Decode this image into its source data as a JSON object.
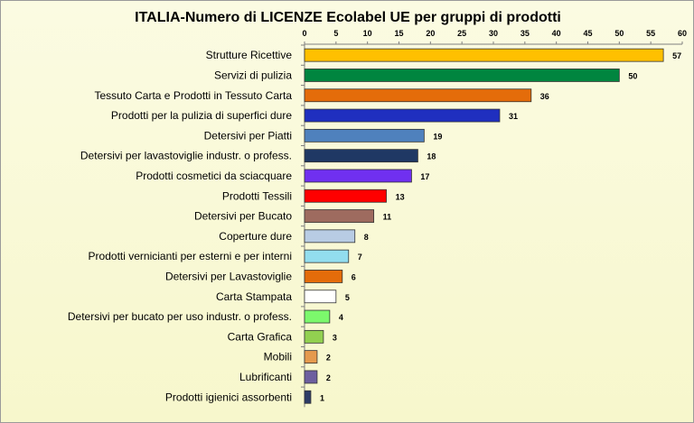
{
  "chart_data": {
    "type": "bar",
    "orientation": "horizontal",
    "title": "ITALIA-Numero di LICENZE  Ecolabel UE per gruppi di prodotti",
    "xlim": [
      0,
      60
    ],
    "xticks": [
      0,
      5,
      10,
      15,
      20,
      25,
      30,
      35,
      40,
      45,
      50,
      55,
      60
    ],
    "x_axis_position": "top",
    "grid": false,
    "categories": [
      "Strutture Ricettive",
      "Servizi di pulizia",
      "Tessuto Carta e Prodotti in Tessuto Carta",
      "Prodotti per la pulizia di superfici dure",
      "Detersivi per Piatti",
      "Detersivi per lavastoviglie industr. o profess.",
      "Prodotti cosmetici da sciacquare",
      "Prodotti Tessili",
      "Detersivi per Bucato",
      "Coperture dure",
      "Prodotti vernicianti per esterni e per interni",
      "Detersivi per Lavastoviglie",
      "Carta Stampata",
      "Detersivi per bucato per uso industr. o profess.",
      "Carta Grafica",
      "Mobili",
      "Lubrificanti",
      "Prodotti igienici assorbenti"
    ],
    "values": [
      57,
      50,
      36,
      31,
      19,
      18,
      17,
      13,
      11,
      8,
      7,
      6,
      5,
      4,
      3,
      2,
      2,
      1
    ],
    "colors": [
      "#ffc000",
      "#00853f",
      "#e46c0a",
      "#1f2fbf",
      "#4f81bd",
      "#1f3864",
      "#7030f0",
      "#ff0000",
      "#9e6b5f",
      "#b8cce4",
      "#92ddee",
      "#e46c0a",
      "#ffffff",
      "#7cf86c",
      "#92d050",
      "#e59a4e",
      "#6d5f9f",
      "#2e3c66"
    ]
  }
}
